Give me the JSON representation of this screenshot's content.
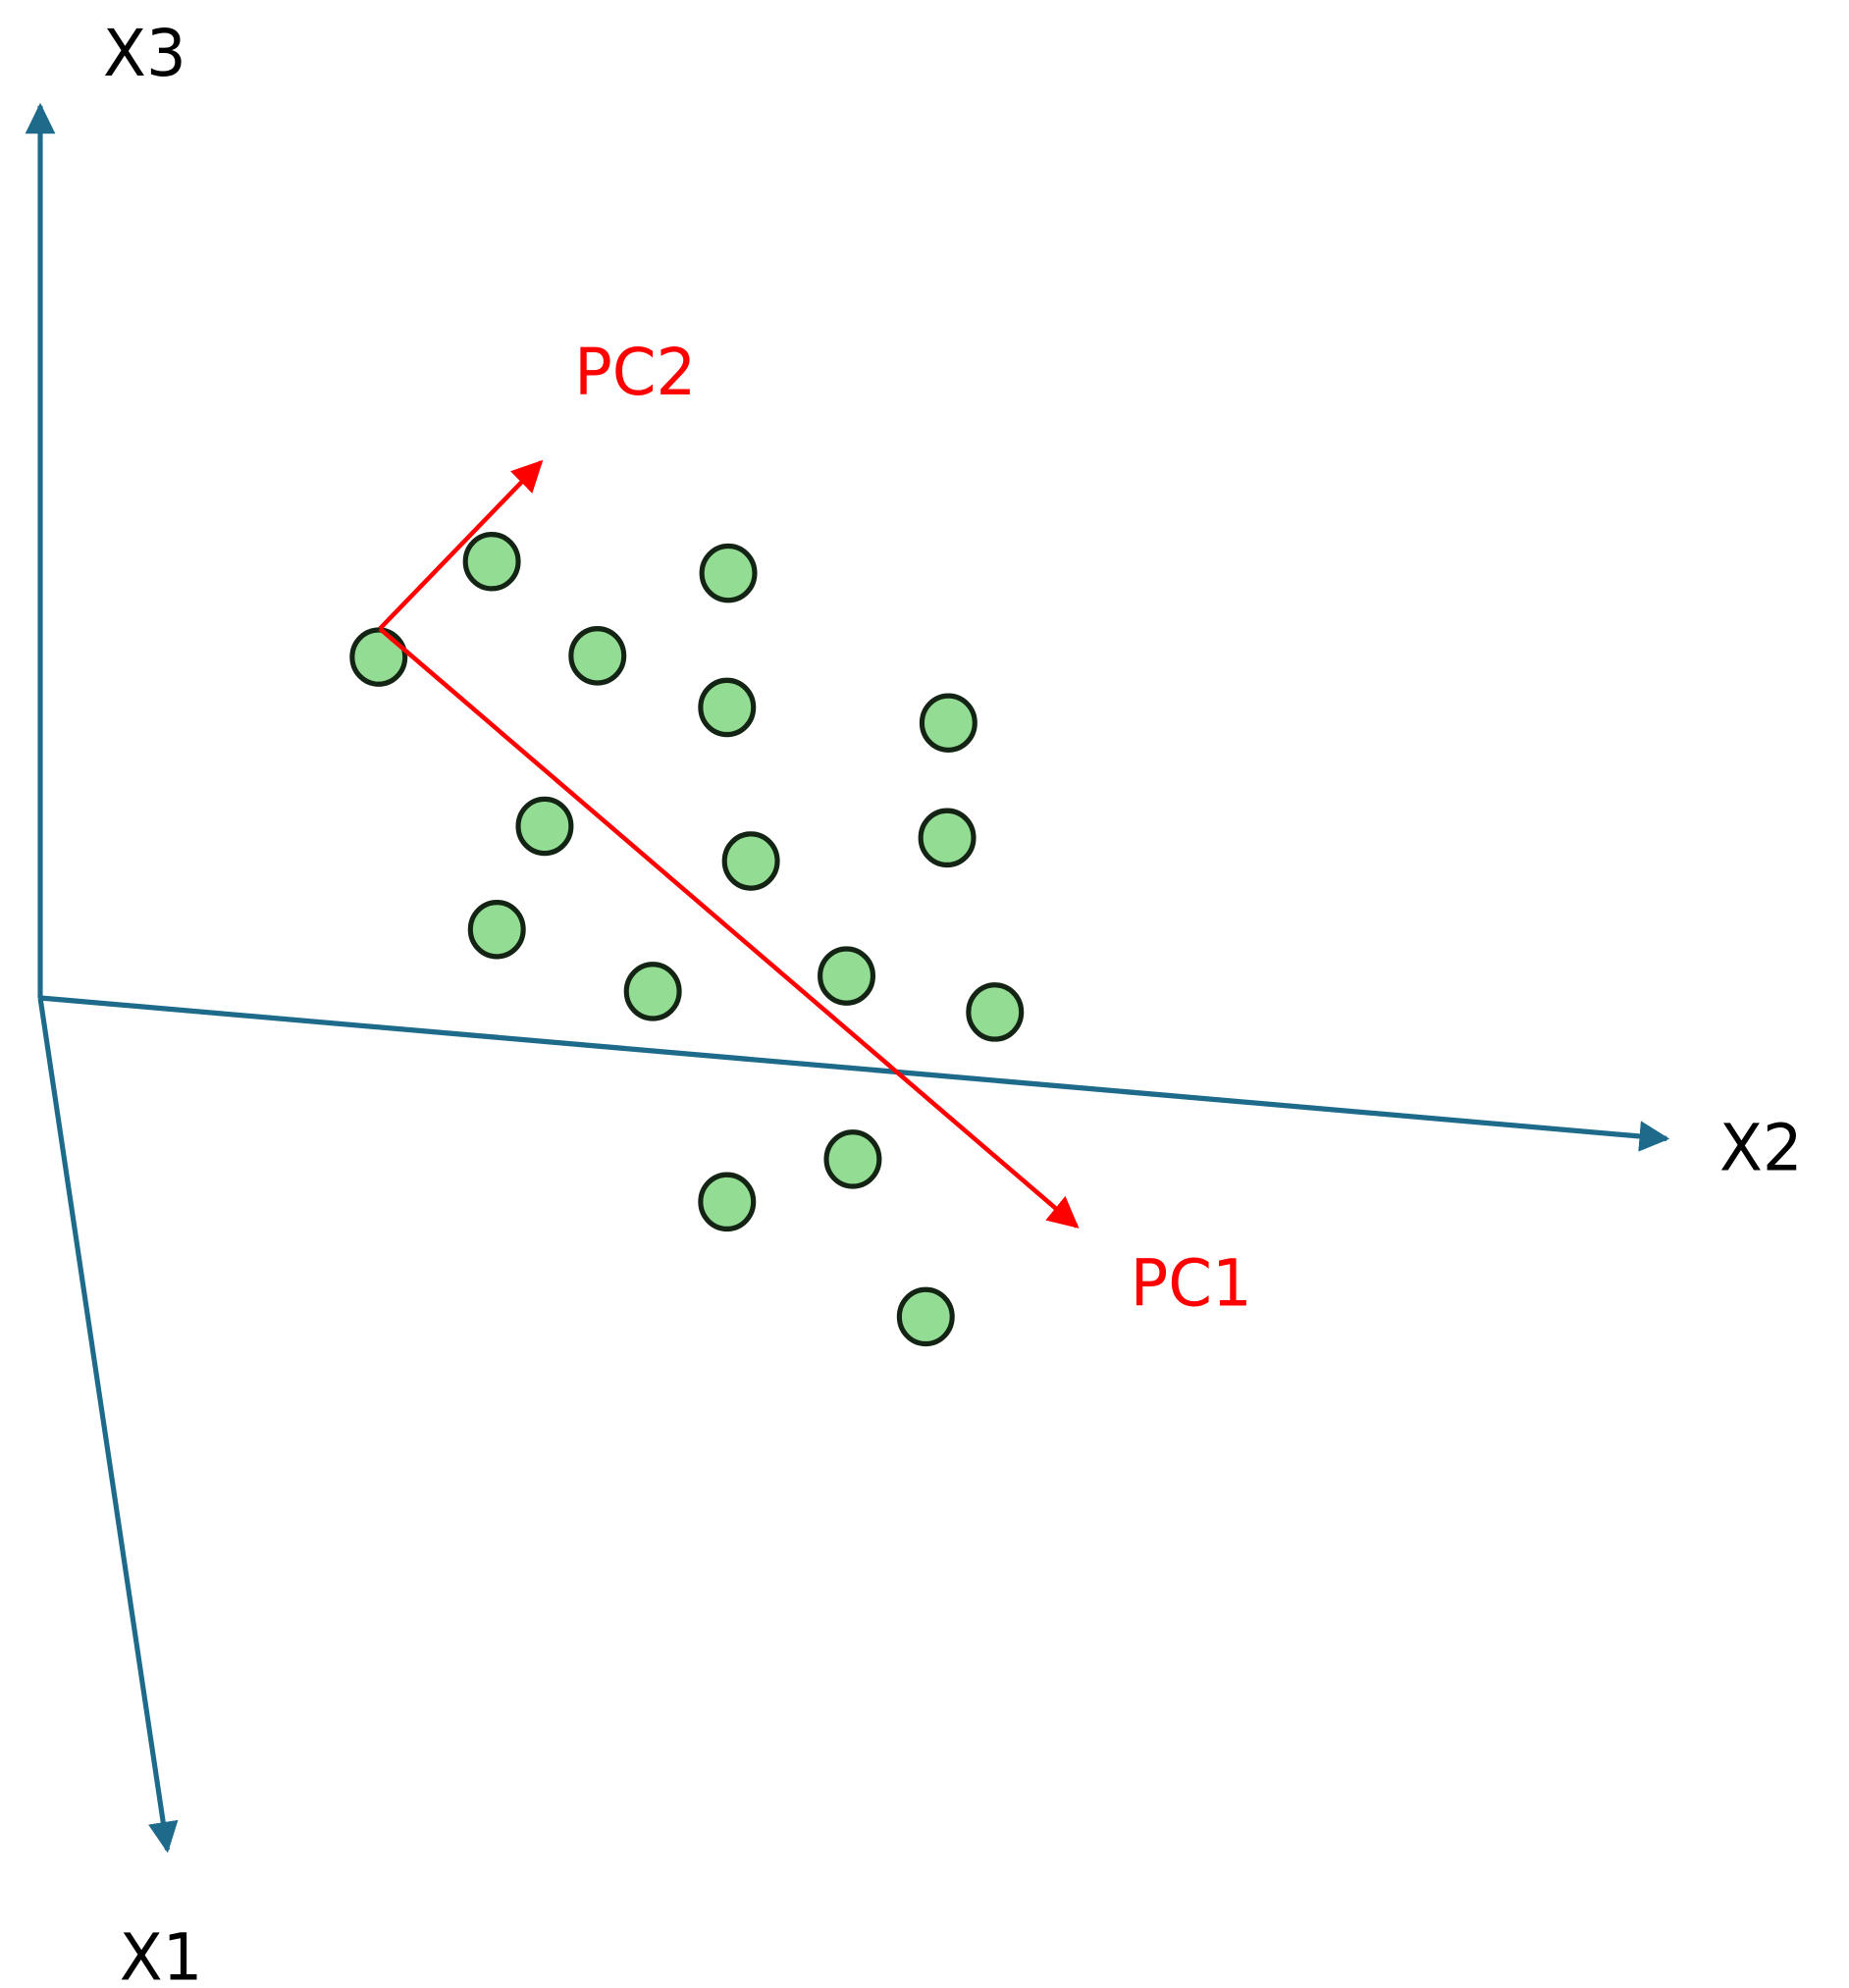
{
  "axes": {
    "x3": "X3",
    "x2": "X2",
    "x1": "X1"
  },
  "components": {
    "pc2": "PC2",
    "pc1": "PC1"
  }
}
